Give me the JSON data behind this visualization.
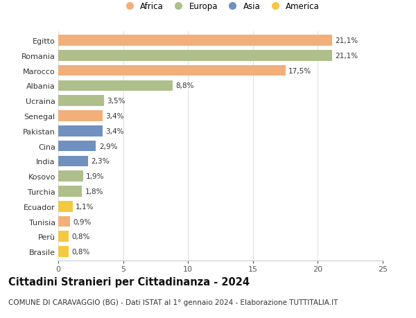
{
  "countries": [
    "Egitto",
    "Romania",
    "Marocco",
    "Albania",
    "Ucraina",
    "Senegal",
    "Pakistan",
    "Cina",
    "India",
    "Kosovo",
    "Turchia",
    "Ecuador",
    "Tunisia",
    "Perù",
    "Brasile"
  ],
  "values": [
    21.1,
    21.1,
    17.5,
    8.8,
    3.5,
    3.4,
    3.4,
    2.9,
    2.3,
    1.9,
    1.8,
    1.1,
    0.9,
    0.8,
    0.8
  ],
  "labels": [
    "21,1%",
    "21,1%",
    "17,5%",
    "8,8%",
    "3,5%",
    "3,4%",
    "3,4%",
    "2,9%",
    "2,3%",
    "1,9%",
    "1,8%",
    "1,1%",
    "0,9%",
    "0,8%",
    "0,8%"
  ],
  "continents": [
    "Africa",
    "Europa",
    "Africa",
    "Europa",
    "Europa",
    "Africa",
    "Asia",
    "Asia",
    "Asia",
    "Europa",
    "Europa",
    "America",
    "Africa",
    "America",
    "America"
  ],
  "colors": {
    "Africa": "#F2AF7A",
    "Europa": "#AEBF8B",
    "Asia": "#7090C0",
    "America": "#F5C842"
  },
  "legend_order": [
    "Africa",
    "Europa",
    "Asia",
    "America"
  ],
  "title": "Cittadini Stranieri per Cittadinanza - 2024",
  "subtitle": "COMUNE DI CARAVAGGIO (BG) - Dati ISTAT al 1° gennaio 2024 - Elaborazione TUTTITALIA.IT",
  "xlim": [
    0,
    25
  ],
  "xticks": [
    0,
    5,
    10,
    15,
    20,
    25
  ],
  "background_color": "#ffffff",
  "grid_color": "#e0e0e0",
  "bar_height": 0.72,
  "title_fontsize": 10.5,
  "subtitle_fontsize": 7.5,
  "label_fontsize": 7.5,
  "tick_fontsize": 8,
  "legend_fontsize": 8.5
}
